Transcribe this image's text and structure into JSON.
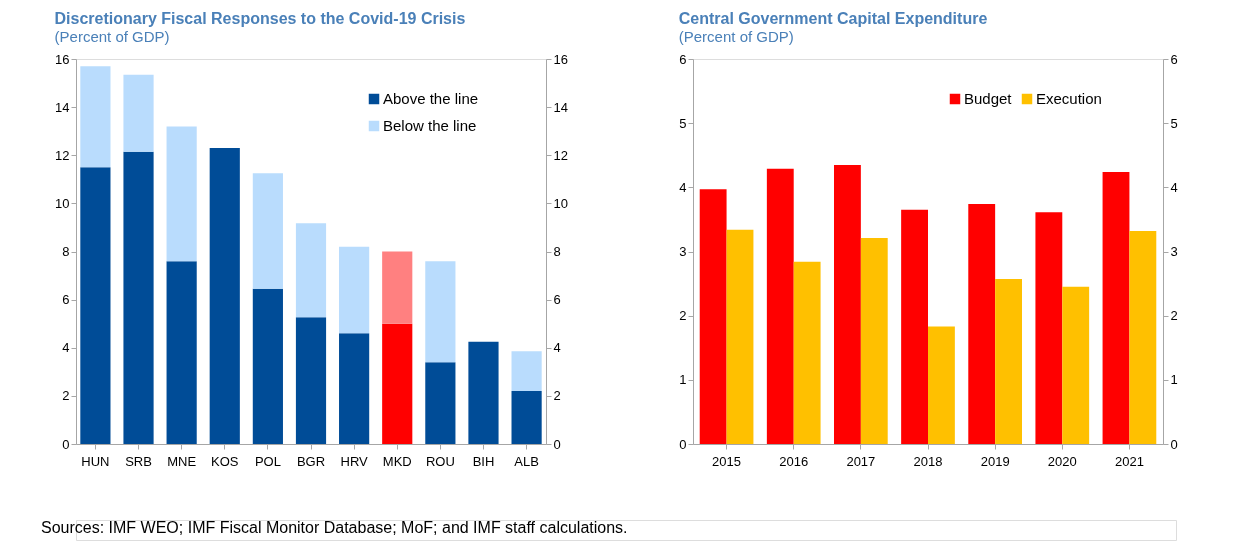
{
  "chart_data": [
    {
      "type": "bar",
      "title": "Discretionary Fiscal Responses to the Covid-19 Crisis",
      "subtitle": "(Percent of GDP)",
      "categories": [
        "HUN",
        "SRB",
        "MNE",
        "KOS",
        "POL",
        "BGR",
        "HRV",
        "MKD",
        "ROU",
        "BIH",
        "ALB"
      ],
      "stacked": true,
      "series": [
        {
          "name": "Above the line",
          "color": "#004c97",
          "colors": [
            "#004c97",
            "#004c97",
            "#004c97",
            "#004c97",
            "#004c97",
            "#004c97",
            "#004c97",
            "#ff0000",
            "#004c97",
            "#004c97",
            "#004c97"
          ],
          "values": [
            11.5,
            12.15,
            7.6,
            12.3,
            6.45,
            5.27,
            4.6,
            5.0,
            3.4,
            4.25,
            2.2
          ]
        },
        {
          "name": "Below the line",
          "color": "#b9dcfd",
          "colors": [
            "#b9dcfd",
            "#b9dcfd",
            "#b9dcfd",
            "#b9dcfd",
            "#b9dcfd",
            "#b9dcfd",
            "#b9dcfd",
            "#ff8080",
            "#b9dcfd",
            "#b9dcfd",
            "#b9dcfd"
          ],
          "values": [
            4.2,
            3.2,
            5.6,
            null,
            4.8,
            3.9,
            3.6,
            3.0,
            4.2,
            null,
            1.65
          ]
        }
      ],
      "ylim": [
        0,
        16
      ],
      "yticks": [
        0,
        2,
        4,
        6,
        8,
        10,
        12,
        14,
        16
      ],
      "y2lim": [
        0,
        16
      ],
      "y2ticks": [
        0,
        2,
        4,
        6,
        8,
        10,
        12,
        14,
        16
      ],
      "legend": "top right",
      "annotations": [
        "Sources: IMF WEO; IMF Fiscal Monitor Database;  MoF; and IMF staff calculations."
      ]
    },
    {
      "type": "bar",
      "title": "Central Government Capital Expenditure",
      "subtitle": "(Percent of GDP)",
      "categories": [
        "2015",
        "2016",
        "2017",
        "2018",
        "2019",
        "2020",
        "2021"
      ],
      "series": [
        {
          "name": "Budget",
          "color": "#ff0000",
          "values": [
            3.97,
            4.29,
            4.35,
            3.65,
            3.74,
            3.61,
            4.24
          ]
        },
        {
          "name": "Execution",
          "color": "#ffc000",
          "values": [
            3.34,
            2.84,
            3.21,
            1.83,
            2.57,
            2.45,
            3.32
          ]
        }
      ],
      "ylim": [
        0,
        6
      ],
      "yticks": [
        0,
        1,
        2,
        3,
        4,
        5,
        6
      ],
      "y2lim": [
        0,
        6
      ],
      "y2ticks": [
        0,
        1,
        2,
        3,
        4,
        5,
        6
      ],
      "legend": "top right"
    }
  ]
}
